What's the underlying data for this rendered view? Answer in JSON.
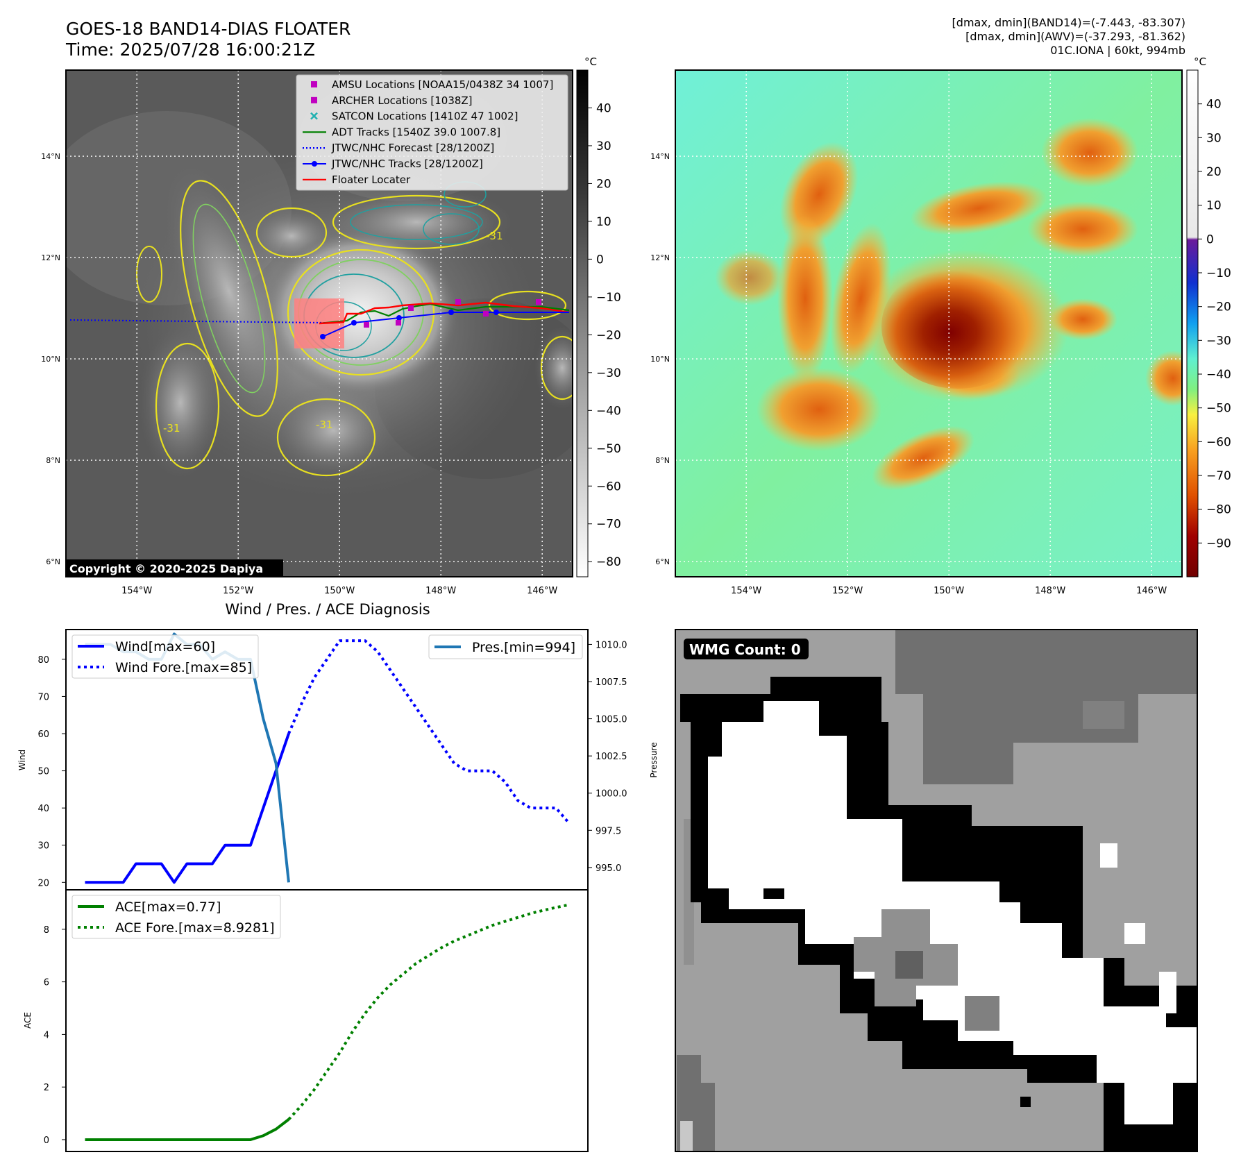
{
  "header": {
    "title_line1": "GOES-18 BAND14-DIAS FLOATER",
    "title_line2": "Time: 2025/07/28 16:00:21Z",
    "stat_line1": "[dmax, dmin](BAND14)=(-7.443, -83.307)",
    "stat_line2": "[dmax, dmin](AWV)=(-37.293, -81.362)",
    "stat_line3": "01C.IONA | 60kt, 994mb"
  },
  "map": {
    "lat_labels": [
      "14°N",
      "12°N",
      "10°N",
      "8°N",
      "6°N"
    ],
    "lat_values": [
      14,
      12,
      10,
      8,
      6
    ],
    "lon_labels": [
      "154°W",
      "152°W",
      "150°W",
      "148°W",
      "146°W"
    ],
    "lon_values": [
      -154,
      -152,
      -150,
      -148,
      -146
    ],
    "lat_range": [
      5.7,
      15.7
    ],
    "lon_range": [
      -155.4,
      -145.4
    ],
    "copyright": "Copyright © 2020-2025 Dapiya",
    "contour_label": "-31"
  },
  "colorbar_left": {
    "unit": "°C",
    "ticks": [
      "40",
      "30",
      "20",
      "10",
      "0",
      "−10",
      "−20",
      "−30",
      "−40",
      "−50",
      "−60",
      "−70",
      "−80"
    ],
    "tick_values": [
      40,
      30,
      20,
      10,
      0,
      -10,
      -20,
      -30,
      -40,
      -50,
      -60,
      -70,
      -80
    ],
    "range": [
      -84,
      50
    ]
  },
  "colorbar_right": {
    "unit": "°C",
    "ticks": [
      "40",
      "30",
      "20",
      "10",
      "0",
      "−10",
      "−20",
      "−30",
      "−40",
      "−50",
      "−60",
      "−70",
      "−80",
      "−90"
    ],
    "tick_values": [
      40,
      30,
      20,
      10,
      0,
      -10,
      -20,
      -30,
      -40,
      -50,
      -60,
      -70,
      -80,
      -90
    ],
    "range": [
      -100,
      50
    ]
  },
  "legend_map": [
    {
      "label": "AMSU Locations [NOAA15/0438Z 34 1007]",
      "color": "#c000c0",
      "marker": "square"
    },
    {
      "label": "ARCHER Locations [1038Z]",
      "color": "#c000c0",
      "marker": "square"
    },
    {
      "label": "SATCON Locations [1410Z 47 1002]",
      "color": "#20b0b0",
      "marker": "x"
    },
    {
      "label": "ADT Tracks [1540Z 39.0 1007.8]",
      "color": "#008000",
      "marker": "line"
    },
    {
      "label": "JTWC/NHC Forecast [28/1200Z]",
      "color": "#0000ff",
      "marker": "dotted"
    },
    {
      "label": "JTWC/NHC Tracks [28/1200Z]",
      "color": "#0000ff",
      "marker": "line-dot"
    },
    {
      "label": "Floater Locater",
      "color": "#ff0000",
      "marker": "line"
    }
  ],
  "wmg": {
    "label": "WMG Count: 0"
  },
  "diag": {
    "title": "Wind / Pres. / ACE Diagnosis",
    "wind_ylabel": "Wind",
    "pres_ylabel": "Pressure",
    "ace_ylabel": "ACE",
    "wind_ticks": [
      20,
      30,
      40,
      50,
      60,
      70,
      80
    ],
    "pres_ticks": [
      "995.0",
      "997.5",
      "1000.0",
      "1002.5",
      "1005.0",
      "1007.5",
      "1010.0"
    ],
    "pres_tick_values": [
      995.0,
      997.5,
      1000.0,
      1002.5,
      1005.0,
      1007.5,
      1010.0
    ],
    "ace_ticks": [
      0,
      2,
      4,
      6,
      8
    ],
    "wind_legend": [
      "Wind[max=60]",
      "Wind Fore.[max=85]"
    ],
    "pres_legend": [
      "Pres.[min=994]"
    ],
    "ace_legend": [
      "ACE[max=0.77]",
      "ACE Fore.[max=8.9281]"
    ]
  },
  "chart_data": [
    {
      "type": "line",
      "title": "Wind / Pres. / ACE Diagnosis",
      "ylabel": "Wind",
      "ylim": [
        18,
        88
      ],
      "x": [
        0,
        1,
        2,
        3,
        4,
        5,
        6,
        7,
        8,
        9,
        10,
        11,
        12,
        13,
        14,
        15,
        16,
        17,
        18,
        19,
        20,
        21,
        22,
        23,
        24,
        25,
        26,
        27,
        28,
        29,
        30,
        31,
        32,
        33,
        34,
        35,
        36,
        37,
        38
      ],
      "series": [
        {
          "name": "Wind[max=60]",
          "color": "#0000ff",
          "style": "solid",
          "x": [
            0,
            1,
            2,
            3,
            4,
            5,
            6,
            7,
            8,
            9,
            10,
            11,
            12,
            13,
            14,
            15,
            16
          ],
          "values": [
            20,
            20,
            20,
            20,
            25,
            25,
            25,
            20,
            25,
            25,
            25,
            30,
            30,
            30,
            40,
            50,
            60
          ]
        },
        {
          "name": "Wind Fore.[max=85]",
          "color": "#0000ff",
          "style": "dotted",
          "x": [
            16,
            17,
            18,
            19,
            20,
            21,
            22,
            23,
            24,
            25,
            26,
            27,
            28,
            29,
            30,
            31,
            32,
            33,
            34,
            35,
            36,
            37,
            38
          ],
          "values": [
            60,
            68,
            75,
            80,
            85,
            85,
            85,
            82,
            77,
            72,
            67,
            62,
            57,
            52,
            50,
            50,
            50,
            47,
            42,
            40,
            40,
            40,
            36
          ]
        },
        {
          "name": "Pres.[min=994]",
          "color": "#1f77b4",
          "style": "solid",
          "axis": "right",
          "ylim_right": [
            993.5,
            1011.0
          ],
          "x": [
            0,
            1,
            2,
            3,
            4,
            5,
            6,
            7,
            8,
            9,
            10,
            11,
            12,
            13,
            14,
            15,
            16
          ],
          "values": [
            1010.0,
            1010.0,
            1010.0,
            1009.5,
            1009.5,
            1009.0,
            1009.0,
            1010.7,
            1010.0,
            1010.0,
            1009.0,
            1009.5,
            1009.0,
            1009.0,
            1005.0,
            1002.0,
            994.0
          ]
        }
      ]
    },
    {
      "type": "line",
      "ylabel": "ACE",
      "ylim": [
        -0.45,
        9.5
      ],
      "series": [
        {
          "name": "ACE[max=0.77]",
          "color": "#008000",
          "style": "solid",
          "x": [
            0,
            1,
            2,
            3,
            4,
            5,
            6,
            7,
            8,
            9,
            10,
            11,
            12,
            13,
            14,
            15,
            16
          ],
          "values": [
            0,
            0,
            0,
            0,
            0,
            0,
            0,
            0,
            0,
            0,
            0,
            0,
            0,
            0,
            0.15,
            0.4,
            0.77
          ]
        },
        {
          "name": "ACE Fore.[max=8.9281]",
          "color": "#008000",
          "style": "dotted",
          "x": [
            16,
            17,
            18,
            19,
            20,
            21,
            22,
            23,
            24,
            25,
            26,
            27,
            28,
            29,
            30,
            31,
            32,
            33,
            34,
            35,
            36,
            37,
            38
          ],
          "values": [
            0.77,
            1.3,
            1.9,
            2.6,
            3.3,
            4.1,
            4.8,
            5.4,
            5.9,
            6.3,
            6.7,
            7.0,
            7.3,
            7.55,
            7.75,
            7.95,
            8.15,
            8.3,
            8.45,
            8.6,
            8.72,
            8.83,
            8.93
          ]
        }
      ]
    }
  ]
}
